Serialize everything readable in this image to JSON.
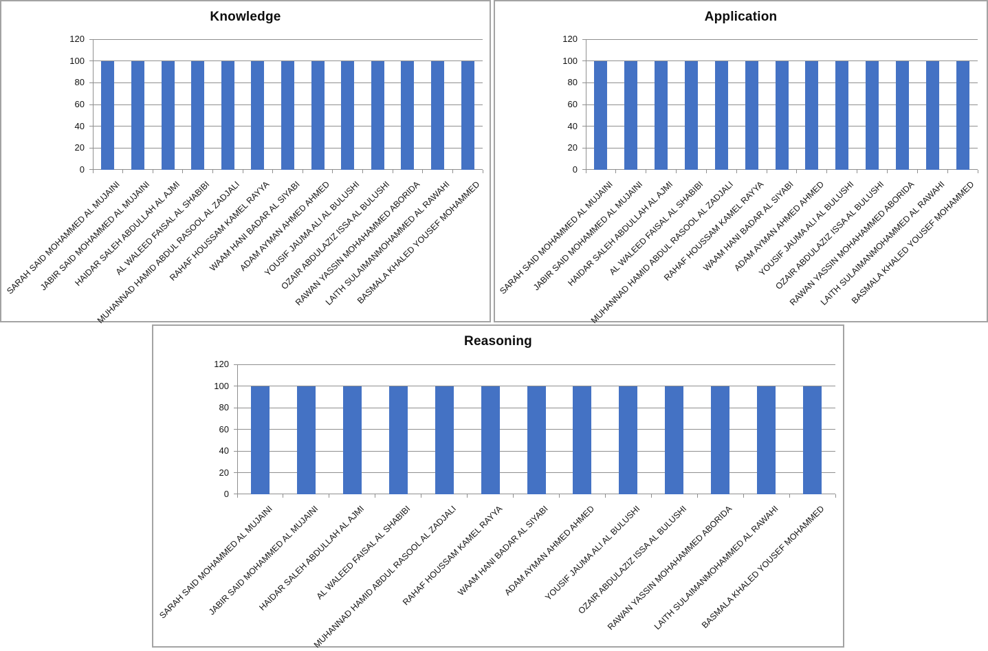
{
  "chart_data": [
    {
      "type": "bar",
      "title": "Knowledge",
      "categories": [
        "SARAH SAID MOHAMMED AL MUJAINI",
        "JABIR SAID MOHAMMED AL MUJAINI",
        "HAIDAR SALEH ABDULLAH AL AJMI",
        "AL WALEED FAISAL AL SHABIBI",
        "MUHANNAD HAMID ABDUL RASOOL AL ZADJALI",
        "RAHAF HOUSSAM KAMEL RAYYA",
        "WAAM HANI BADAR AL SIYABI",
        "ADAM AYMAN AHMED AHMED",
        "YOUSIF JAUMA ALI AL BULUSHI",
        "OZAIR ABDULAZIZ ISSA AL BULUSHI",
        "RAWAN YASSIN MOHAHAMMED ABORIDA",
        "LAITH SULAIMANMOHAMMED AL RAWAHI",
        "BASMALA KHALED YOUSEF MOHAMMED"
      ],
      "values": [
        100,
        100,
        100,
        100,
        100,
        100,
        100,
        100,
        100,
        100,
        100,
        100,
        100
      ],
      "ylim": [
        0,
        120
      ],
      "yticks": [
        0,
        20,
        40,
        60,
        80,
        100,
        120
      ],
      "xlabel": "",
      "ylabel": "",
      "grid": true,
      "legend": "none",
      "bar_color": "#4472C4",
      "gridline_color": "#8e8e8e",
      "axis_color": "#8e8e8e"
    },
    {
      "type": "bar",
      "title": "Application",
      "categories": [
        "SARAH SAID MOHAMMED AL MUJAINI",
        "JABIR SAID MOHAMMED AL MUJAINI",
        "HAIDAR SALEH ABDULLAH AL AJMI",
        "AL WALEED FAISAL AL SHABIBI",
        "MUHANNAD HAMID ABDUL RASOOL AL ZADJALI",
        "RAHAF HOUSSAM KAMEL RAYYA",
        "WAAM HANI BADAR AL SIYABI",
        "ADAM AYMAN AHMED AHMED",
        "YOUSIF JAUMA ALI AL BULUSHI",
        "OZAIR ABDULAZIZ ISSA AL BULUSHI",
        "RAWAN YASSIN MOHAHAMMED ABORIDA",
        "LAITH SULAIMANMOHAMMED AL RAWAHI",
        "BASMALA KHALED YOUSEF MOHAMMED"
      ],
      "values": [
        100,
        100,
        100,
        100,
        100,
        100,
        100,
        100,
        100,
        100,
        100,
        100,
        100
      ],
      "ylim": [
        0,
        120
      ],
      "yticks": [
        0,
        20,
        40,
        60,
        80,
        100,
        120
      ],
      "xlabel": "",
      "ylabel": "",
      "grid": true,
      "legend": "none",
      "bar_color": "#4472C4",
      "gridline_color": "#8e8e8e",
      "axis_color": "#8e8e8e"
    },
    {
      "type": "bar",
      "title": "Reasoning",
      "categories": [
        "SARAH SAID MOHAMMED AL MUJAINI",
        "JABIR SAID MOHAMMED AL MUJAINI",
        "HAIDAR SALEH ABDULLAH AL AJMI",
        "AL WALEED FAISAL AL SHABIBI",
        "MUHANNAD HAMID ABDUL RASOOL AL ZADJALI",
        "RAHAF HOUSSAM KAMEL RAYYA",
        "WAAM HANI BADAR AL SIYABI",
        "ADAM AYMAN AHMED AHMED",
        "YOUSIF JAUMA ALI AL BULUSHI",
        "OZAIR ABDULAZIZ ISSA AL BULUSHI",
        "RAWAN YASSIN MOHAHAMMED ABORIDA",
        "LAITH SULAIMANMOHAMMED AL RAWAHI",
        "BASMALA KHALED YOUSEF MOHAMMED"
      ],
      "values": [
        100,
        100,
        100,
        100,
        100,
        100,
        100,
        100,
        100,
        100,
        100,
        100,
        100
      ],
      "ylim": [
        0,
        120
      ],
      "yticks": [
        0,
        20,
        40,
        60,
        80,
        100,
        120
      ],
      "xlabel": "",
      "ylabel": "",
      "grid": true,
      "legend": "none",
      "bar_color": "#4472C4",
      "gridline_color": "#8e8e8e",
      "axis_color": "#8e8e8e"
    }
  ],
  "colors": {
    "panel_border": "#a3a3a3",
    "background": "#ffffff",
    "text": "#111111"
  }
}
